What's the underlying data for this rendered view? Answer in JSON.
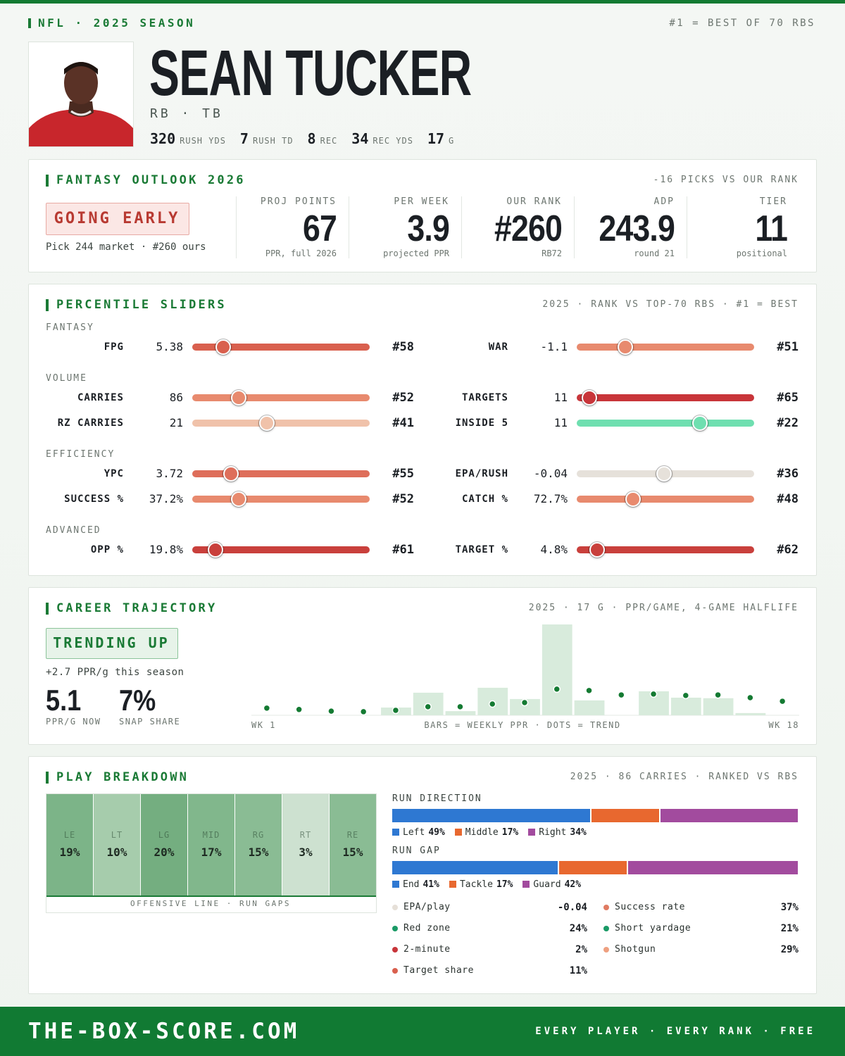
{
  "header": {
    "league": "NFL · 2025 SEASON",
    "note": "#1 = BEST OF 70 RBS",
    "rank_pool": 70,
    "name": "SEAN TUCKER",
    "position": "RB · TB",
    "stats": [
      {
        "value": 320,
        "label": "RUSH YDS"
      },
      {
        "value": 7,
        "label": "RUSH TD"
      },
      {
        "value": 8,
        "label": "REC"
      },
      {
        "value": 34,
        "label": "REC YDS"
      },
      {
        "value": 17,
        "label": "G"
      }
    ]
  },
  "outlook": {
    "title": "FANTASY OUTLOOK 2026",
    "note": "-16 PICKS VS OUR RANK",
    "badge": "GOING EARLY",
    "badge_note": "Pick 244 market · #260 ours",
    "metrics": [
      {
        "label": "PROJ POINTS",
        "value": 67,
        "sub": "PPR, full 2026"
      },
      {
        "label": "PER WEEK",
        "value": 3.9,
        "sub": "projected PPR"
      },
      {
        "label": "OUR RANK",
        "value": "#260",
        "sub": "RB72"
      },
      {
        "label": "ADP",
        "value": 243.9,
        "sub": "round 21"
      },
      {
        "label": "TIER",
        "value": 11,
        "sub": "positional"
      }
    ]
  },
  "sliders": {
    "title": "PERCENTILE SLIDERS",
    "note": "2025 · RANK VS TOP-70 RBS · #1 = BEST",
    "groups": [
      {
        "name": "FANTASY",
        "rows": [
          [
            {
              "label": "FPG",
              "value": 5.38,
              "rank": {
                "value": 58,
                "label": "#58"
              },
              "color": "#d9604e"
            },
            {
              "label": "WAR",
              "value": -1.1,
              "rank": {
                "value": 51,
                "label": "#51"
              },
              "color": "#e88a6e"
            }
          ]
        ]
      },
      {
        "name": "VOLUME",
        "rows": [
          [
            {
              "label": "CARRIES",
              "value": 86,
              "rank": {
                "value": 52,
                "label": "#52"
              },
              "color": "#e88a6e"
            },
            {
              "label": "TARGETS",
              "value": 11,
              "rank": {
                "value": 65,
                "label": "#65"
              },
              "color": "#c8353a"
            }
          ],
          [
            {
              "label": "RZ CARRIES",
              "value": 21,
              "rank": {
                "value": 41,
                "label": "#41"
              },
              "color": "#f0c2aa"
            },
            {
              "label": "INSIDE 5",
              "value": 11,
              "rank": {
                "value": 22,
                "label": "#22"
              },
              "color": "#6fdfb0"
            }
          ]
        ]
      },
      {
        "name": "EFFICIENCY",
        "rows": [
          [
            {
              "label": "YPC",
              "value": 3.72,
              "rank": {
                "value": 55,
                "label": "#55"
              },
              "color": "#de6e5a"
            },
            {
              "label": "EPA/RUSH",
              "value": -0.04,
              "rank": {
                "value": 36,
                "label": "#36"
              },
              "color": "#e6e1da"
            }
          ],
          [
            {
              "label": "SUCCESS %",
              "value": "37.2%",
              "rank": {
                "value": 52,
                "label": "#52"
              },
              "color": "#e88a6e"
            },
            {
              "label": "CATCH %",
              "value": "72.7%",
              "rank": {
                "value": 48,
                "label": "#48"
              },
              "color": "#e88a6e"
            }
          ]
        ]
      },
      {
        "name": "ADVANCED",
        "rows": [
          [
            {
              "label": "OPP %",
              "value": "19.8%",
              "rank": {
                "value": 61,
                "label": "#61"
              },
              "color": "#c9403c"
            },
            {
              "label": "TARGET %",
              "value": "4.8%",
              "rank": {
                "value": 62,
                "label": "#62"
              },
              "color": "#c9403c"
            }
          ]
        ]
      }
    ]
  },
  "trajectory": {
    "title": "CAREER TRAJECTORY",
    "note": "2025 · 17 G · PPR/GAME, 4-GAME HALFLIFE",
    "badge": "TRENDING UP",
    "change": "+2.7 PPR/g this season",
    "kpis": [
      {
        "value": 5.1,
        "label": "PPR/G NOW"
      },
      {
        "value": "7%",
        "label": "SNAP SHARE"
      }
    ],
    "chart_note": "BARS = WEEKLY PPR · DOTS = TREND"
  },
  "chart_data": {
    "type": "bar",
    "categories": [
      "WK 1",
      null,
      null,
      null,
      null,
      null,
      null,
      null,
      null,
      null,
      null,
      null,
      null,
      null,
      null,
      null,
      "WK 18"
    ],
    "ylim": [
      0,
      33
    ],
    "series": [
      {
        "type": "bar",
        "color": "#d8ebdc",
        "values": [
          0,
          0,
          0,
          0,
          2.8,
          8.2,
          1.5,
          10,
          5.9,
          33,
          5.4,
          0,
          8.7,
          6.4,
          6.2,
          0.8,
          0
        ]
      },
      {
        "type": "scatter",
        "color": "#147a32",
        "values": [
          2.6,
          2.1,
          1.5,
          1.3,
          1.8,
          3.1,
          3.1,
          4.1,
          4.6,
          9.5,
          9.0,
          7.4,
          7.7,
          7.2,
          7.4,
          6.4,
          5.1
        ]
      }
    ]
  },
  "breakdown": {
    "title": "PLAY BREAKDOWN",
    "note": "2025 · 86 CARRIES · RANKED VS RBS",
    "line_caption": "OFFENSIVE LINE · RUN GAPS",
    "gaps": [
      {
        "label": "LE",
        "value": 19,
        "value_label": "19%",
        "color": "#7cb488"
      },
      {
        "label": "LT",
        "value": 10,
        "value_label": "10%",
        "color": "#a6ccac"
      },
      {
        "label": "LG",
        "value": 20,
        "value_label": "20%",
        "color": "#74ae80"
      },
      {
        "label": "MID",
        "value": 17,
        "value_label": "17%",
        "color": "#81b78c"
      },
      {
        "label": "RG",
        "value": 15,
        "value_label": "15%",
        "color": "#8abc94"
      },
      {
        "label": "RT",
        "value": 3,
        "value_label": "3%",
        "color": "#cde1d0"
      },
      {
        "label": "RE",
        "value": 15,
        "value_label": "15%",
        "color": "#8abc94"
      }
    ],
    "bars": [
      {
        "title": "RUN DIRECTION",
        "segments": [
          {
            "name": "Left",
            "value": 49,
            "label": "49%",
            "color": "#2e78d2"
          },
          {
            "name": "Middle",
            "value": 17,
            "label": "17%",
            "color": "#e8682f"
          },
          {
            "name": "Right",
            "value": 34,
            "label": "34%",
            "color": "#a24b9e"
          }
        ]
      },
      {
        "title": "RUN GAP",
        "segments": [
          {
            "name": "End",
            "value": 41,
            "label": "41%",
            "color": "#2e78d2"
          },
          {
            "name": "Tackle",
            "value": 17,
            "label": "17%",
            "color": "#e8682f"
          },
          {
            "name": "Guard",
            "value": 42,
            "label": "42%",
            "color": "#a24b9e"
          }
        ]
      }
    ],
    "stats": [
      {
        "label": "EPA/play",
        "value": -0.04,
        "color": "#e6e0d8"
      },
      {
        "label": "Success rate",
        "value": "37%",
        "color": "#e07b62"
      },
      {
        "label": "Red zone",
        "value": "24%",
        "color": "#1a9a66"
      },
      {
        "label": "Short yardage",
        "value": "21%",
        "color": "#1a9a66"
      },
      {
        "label": "2-minute",
        "value": "2%",
        "color": "#c8353a"
      },
      {
        "label": "Shotgun",
        "value": "29%",
        "color": "#eea080"
      },
      {
        "label": "Target share",
        "value": "11%",
        "color": "#d9604e"
      }
    ]
  },
  "footer": {
    "site": "THE-BOX-SCORE.COM",
    "tagline": "EVERY PLAYER · EVERY RANK · FREE"
  }
}
